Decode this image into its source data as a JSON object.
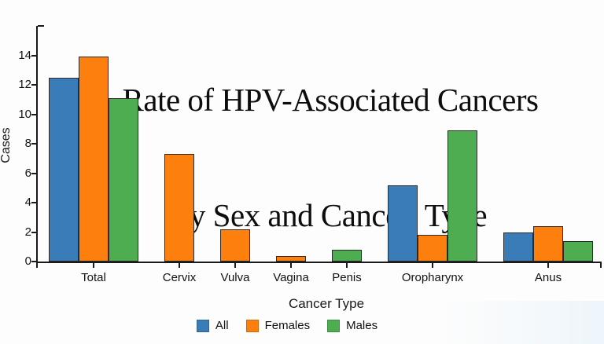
{
  "page": {
    "background": "#fdfdfd"
  },
  "chart_data": {
    "type": "bar",
    "title": "Rate of HPV-Associated Cancers",
    "title_line2": "by Sex and Cancer  Type",
    "xlabel": "Cancer Type",
    "ylabel": "Cases",
    "categories": [
      "Total",
      "Cervix",
      "Vulva",
      "Vagina",
      "Penis",
      "Oropharynx",
      "Anus"
    ],
    "series": [
      {
        "name": "All",
        "color": "#3a7cb8",
        "values": [
          12.5,
          null,
          null,
          null,
          null,
          5.2,
          2.0
        ]
      },
      {
        "name": "Females",
        "color": "#fd7f0e",
        "values": [
          13.9,
          7.3,
          2.2,
          0.4,
          null,
          1.8,
          2.4
        ]
      },
      {
        "name": "Males",
        "color": "#4ead51",
        "values": [
          11.1,
          null,
          null,
          null,
          0.8,
          8.9,
          1.4
        ]
      }
    ],
    "ylim": [
      0,
      16
    ],
    "yticks": [
      0,
      2,
      4,
      6,
      8,
      10,
      12,
      14
    ],
    "grid": false,
    "legend_position": "bottom",
    "bar_outline": "#2b2b2b",
    "axis_color": "#1a1a1a"
  }
}
